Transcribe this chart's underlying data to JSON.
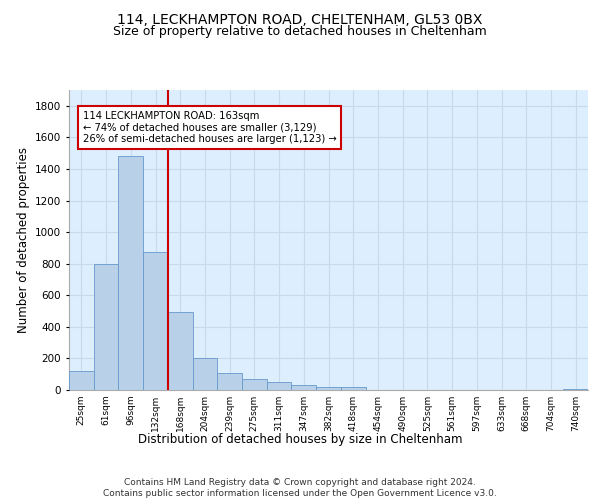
{
  "title1": "114, LECKHAMPTON ROAD, CHELTENHAM, GL53 0BX",
  "title2": "Size of property relative to detached houses in Cheltenham",
  "xlabel": "Distribution of detached houses by size in Cheltenham",
  "ylabel": "Number of detached properties",
  "categories": [
    "25sqm",
    "61sqm",
    "96sqm",
    "132sqm",
    "168sqm",
    "204sqm",
    "239sqm",
    "275sqm",
    "311sqm",
    "347sqm",
    "382sqm",
    "418sqm",
    "454sqm",
    "490sqm",
    "525sqm",
    "561sqm",
    "597sqm",
    "633sqm",
    "668sqm",
    "704sqm",
    "740sqm"
  ],
  "values": [
    120,
    800,
    1480,
    875,
    495,
    205,
    110,
    70,
    50,
    32,
    20,
    20,
    0,
    0,
    0,
    0,
    0,
    0,
    0,
    0,
    5
  ],
  "bar_color": "#b8d0e8",
  "bar_edge_color": "#6699cc",
  "annotation_text": "114 LECKHAMPTON ROAD: 163sqm\n← 74% of detached houses are smaller (3,129)\n26% of semi-detached houses are larger (1,123) →",
  "annotation_box_color": "#ffffff",
  "annotation_box_edge": "#cc0000",
  "vline_color": "#cc0000",
  "ylim": [
    0,
    1900
  ],
  "yticks": [
    0,
    200,
    400,
    600,
    800,
    1000,
    1200,
    1400,
    1600,
    1800
  ],
  "grid_color": "#c8daea",
  "bg_color": "#ddeeff",
  "footer": "Contains HM Land Registry data © Crown copyright and database right 2024.\nContains public sector information licensed under the Open Government Licence v3.0.",
  "title1_fontsize": 10,
  "title2_fontsize": 9,
  "xlabel_fontsize": 8.5,
  "ylabel_fontsize": 8.5,
  "footer_fontsize": 6.5
}
